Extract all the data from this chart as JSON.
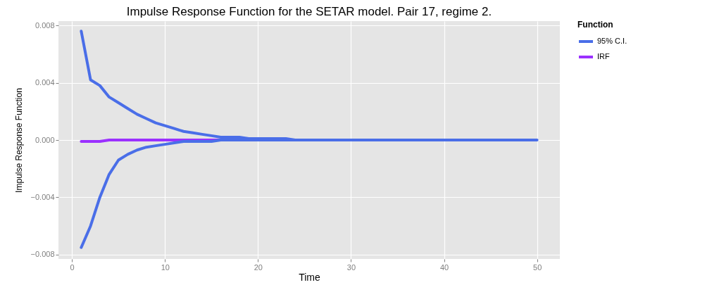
{
  "chart_data": {
    "type": "line",
    "title": "Impulse Response Function for the SETAR model. Pair 17, regime 2.",
    "xlabel": "Time",
    "ylabel": "Impulse Response Function",
    "legend_title": "Function",
    "series": [
      {
        "name": "95% C.I.",
        "color": "#4a6ee8",
        "x": [
          1,
          2,
          3,
          4,
          5,
          6,
          7,
          8,
          9,
          10,
          11,
          12,
          13,
          14,
          15,
          16,
          17,
          18,
          19,
          20,
          21,
          22,
          23,
          24,
          25,
          26,
          27,
          28,
          29,
          30,
          31,
          32,
          33,
          34,
          35,
          36,
          37,
          38,
          39,
          40,
          41,
          42,
          43,
          44,
          45,
          46,
          47,
          48,
          49,
          50,
          50,
          49,
          48,
          47,
          46,
          45,
          44,
          43,
          42,
          41,
          40,
          39,
          38,
          37,
          36,
          35,
          34,
          33,
          32,
          31,
          30,
          29,
          28,
          27,
          26,
          25,
          24,
          23,
          22,
          21,
          20,
          19,
          18,
          17,
          16,
          15,
          14,
          13,
          12,
          11,
          10,
          9,
          8,
          7,
          6,
          5,
          4,
          3,
          2,
          1
        ],
        "values": [
          0.0076,
          0.0042,
          0.0038,
          0.003,
          0.0026,
          0.0022,
          0.0018,
          0.0015,
          0.0012,
          0.001,
          0.0008,
          0.0006,
          0.0005,
          0.0004,
          0.0003,
          0.0002,
          0.0002,
          0.0002,
          0.0001,
          0.0001,
          0.0001,
          0.0001,
          0.0001,
          0,
          0,
          0,
          0,
          0,
          0,
          0,
          0,
          0,
          0,
          0,
          0,
          0,
          0,
          0,
          0,
          0,
          0,
          0,
          0,
          0,
          0,
          0,
          0,
          0,
          0,
          0,
          0,
          0,
          0,
          0,
          0,
          0,
          0,
          0,
          0,
          0,
          0,
          0,
          0,
          0,
          0,
          0,
          0,
          0,
          0,
          0,
          0,
          0,
          0,
          0,
          0,
          0,
          0,
          0,
          0,
          0,
          0,
          0,
          0,
          0,
          0,
          -0.0001,
          -0.0001,
          -0.0001,
          -0.0001,
          -0.0002,
          -0.0003,
          -0.0004,
          -0.0005,
          -0.0007,
          -0.001,
          -0.0014,
          -0.0024,
          -0.004,
          -0.006,
          -0.0075
        ]
      },
      {
        "name": "IRF",
        "color": "#9b30ff",
        "x": [
          1,
          2,
          3,
          4,
          5,
          6,
          7,
          8,
          9,
          10,
          11,
          12,
          13,
          14,
          15,
          16,
          17
        ],
        "values": [
          -0.0001,
          -0.0001,
          -0.0001,
          0,
          0,
          0,
          0,
          0,
          0,
          0,
          0,
          0,
          0,
          0,
          0,
          0,
          0
        ]
      }
    ],
    "xlim": [
      -1.45,
      52.45
    ],
    "xticks": [
      0,
      10,
      20,
      30,
      40,
      50
    ],
    "ylim": [
      -0.0083,
      0.0083
    ],
    "yticks": [
      -0.008,
      -0.004,
      {
        "value": 0,
        "label": "0.000"
      },
      0.004,
      0.008
    ],
    "grid": true,
    "legend": "right",
    "marker": "none",
    "line_style": "solid"
  }
}
